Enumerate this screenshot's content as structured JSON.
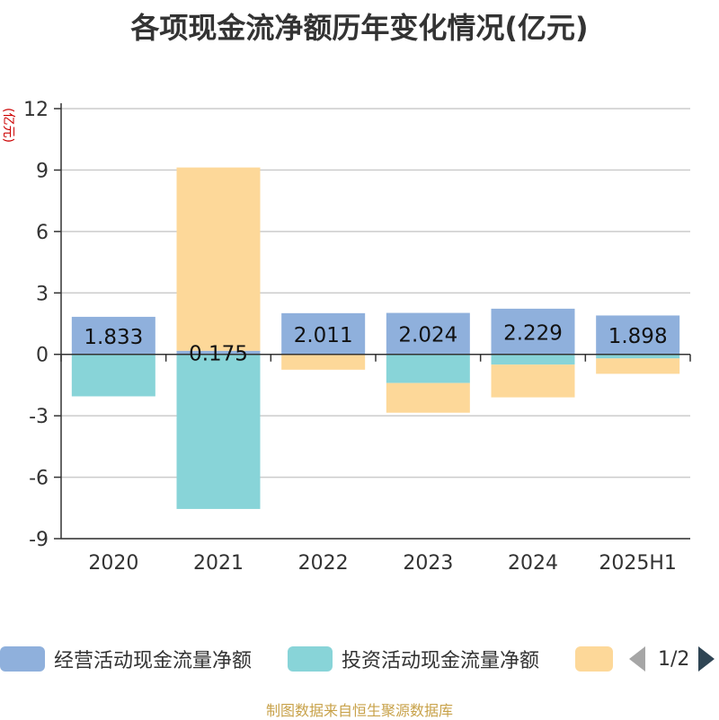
{
  "title": "各项现金流净额历年变化情况(亿元)",
  "y_unit": "(亿元)",
  "source": "制图数据来自恒生聚源数据库",
  "legend_pager": "1/2",
  "colors": {
    "operating": "#8fb0dc",
    "investing": "#88d4d8",
    "financing": "#fdd899",
    "axis": "#333333",
    "grid": "#cccccc"
  },
  "chart_data": {
    "type": "bar",
    "stacked": true,
    "categories": [
      "2020",
      "2021",
      "2022",
      "2023",
      "2024",
      "2025H1"
    ],
    "ylim": [
      -9,
      12
    ],
    "yticks": [
      12,
      9,
      6,
      3,
      0,
      -3,
      -6,
      -9
    ],
    "grid": true,
    "legend_position": "bottom",
    "series": [
      {
        "name": "经营活动现金流量净额",
        "color": "#8fb0dc",
        "values": [
          1.833,
          0.175,
          2.011,
          2.024,
          2.229,
          1.898
        ],
        "labels": [
          "1.833",
          "0.175",
          "2.011",
          "2.024",
          "2.229",
          "1.898"
        ]
      },
      {
        "name": "投资活动现金流量净额",
        "color": "#88d4d8",
        "values": [
          -2.05,
          -7.55,
          0,
          -1.4,
          -0.5,
          -0.2
        ]
      },
      {
        "name": "",
        "color": "#fdd899",
        "values": [
          0,
          8.95,
          -0.75,
          -1.45,
          -1.6,
          -0.75
        ]
      }
    ]
  }
}
